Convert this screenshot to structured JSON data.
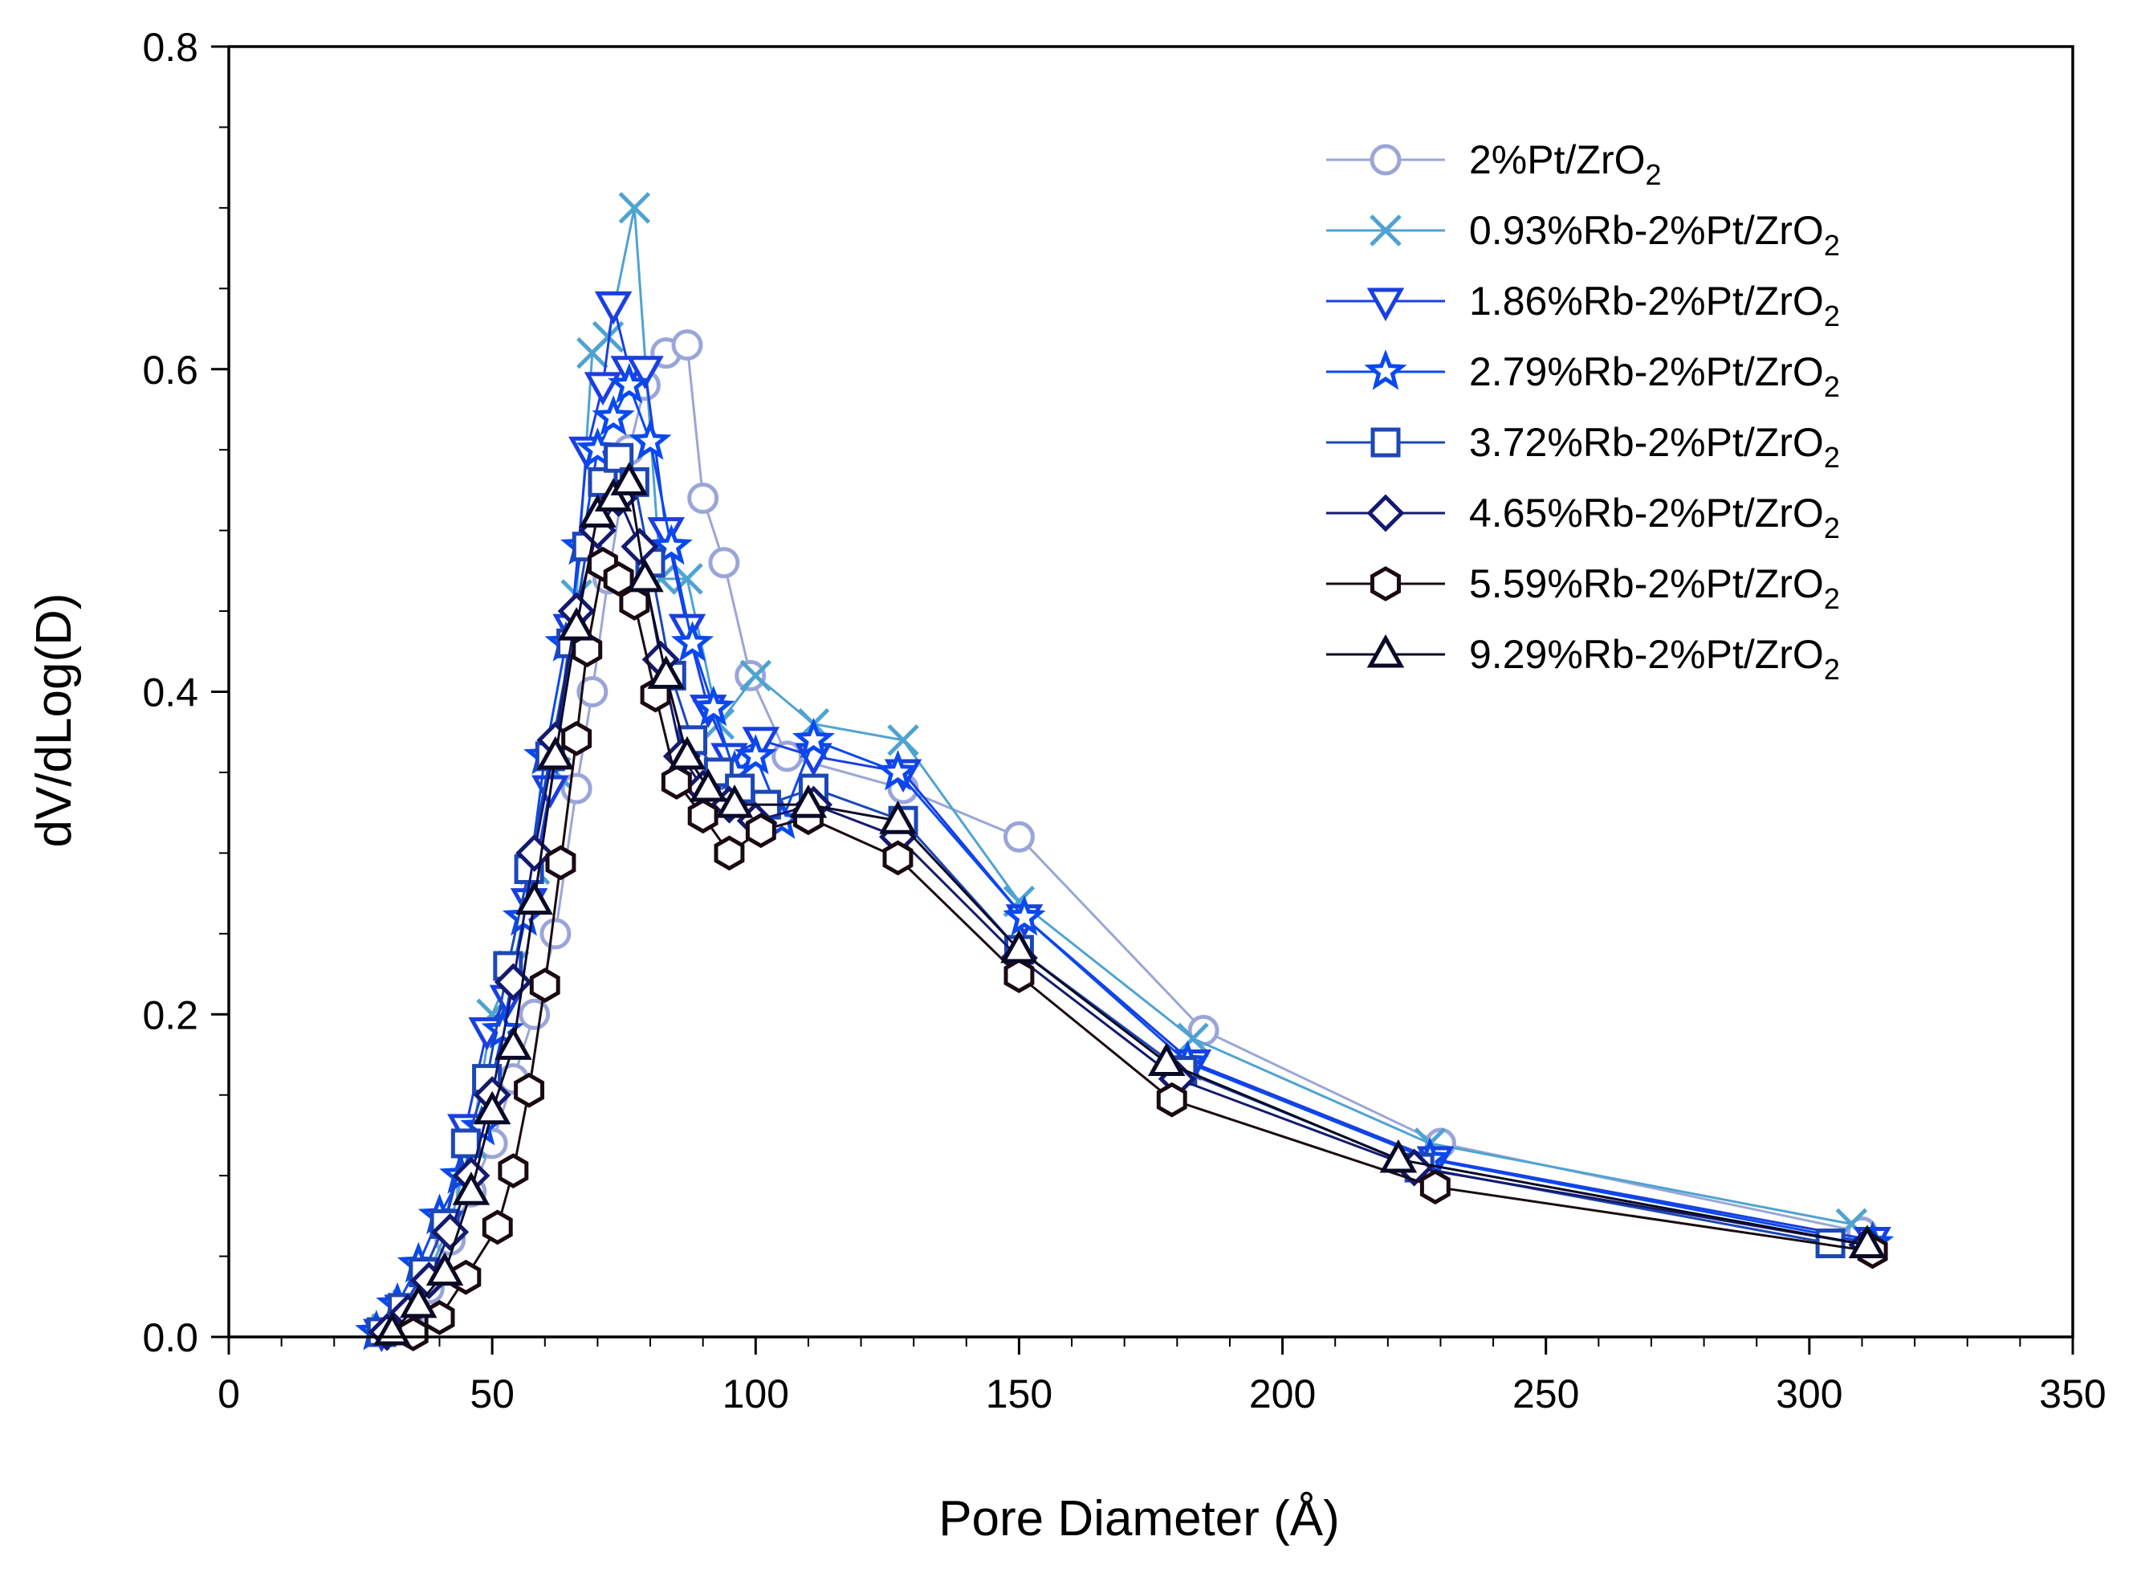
{
  "chart_data": {
    "type": "line",
    "title": "",
    "xlabel": "Pore Diameter (Å)",
    "ylabel": "dV/dLog(D)",
    "xlim": [
      0,
      350
    ],
    "ylim": [
      0,
      0.8
    ],
    "x_ticks": [
      "0",
      "50",
      "100",
      "150",
      "200",
      "250",
      "300",
      "350"
    ],
    "y_ticks": [
      "0.0",
      "0.2",
      "0.4",
      "0.6",
      "0.8"
    ],
    "legend_position": "top-right",
    "series": [
      {
        "name": "2%Pt/ZrO",
        "subscript": "2",
        "marker": "circle",
        "color": "#9aa6d8",
        "x": [
          34,
          38,
          42,
          46,
          50,
          54,
          58,
          62,
          66,
          69,
          72,
          76,
          79,
          83,
          87,
          90,
          94,
          99,
          106,
          128,
          150,
          185,
          230,
          310
        ],
        "y": [
          0.01,
          0.03,
          0.06,
          0.09,
          0.12,
          0.16,
          0.2,
          0.25,
          0.34,
          0.4,
          0.47,
          0.55,
          0.59,
          0.61,
          0.615,
          0.52,
          0.48,
          0.41,
          0.36,
          0.34,
          0.31,
          0.19,
          0.12,
          0.065
        ]
      },
      {
        "name": "0.93%Rb-2%Pt/ZrO",
        "subscript": "2",
        "marker": "x",
        "color": "#4fa3d1",
        "x": [
          30,
          34,
          38,
          42,
          46,
          50,
          54,
          58,
          62,
          66,
          69,
          72,
          77,
          82,
          87,
          93,
          100,
          111,
          128,
          150,
          183,
          228,
          308
        ],
        "y": [
          0.005,
          0.02,
          0.04,
          0.07,
          0.12,
          0.2,
          0.23,
          0.29,
          0.35,
          0.46,
          0.61,
          0.62,
          0.7,
          0.47,
          0.47,
          0.38,
          0.41,
          0.38,
          0.37,
          0.27,
          0.185,
          0.12,
          0.07
        ]
      },
      {
        "name": "1.86%Rb-2%Pt/ZrO",
        "subscript": "2",
        "marker": "triangle-down",
        "color": "#1a3fe0",
        "x": [
          29,
          33,
          37,
          41,
          45,
          49,
          53,
          57,
          61,
          65,
          68,
          71,
          73,
          76,
          79,
          83,
          87,
          91,
          95,
          101,
          111,
          128,
          151,
          183,
          229,
          312
        ],
        "y": [
          0.003,
          0.018,
          0.04,
          0.07,
          0.13,
          0.19,
          0.21,
          0.27,
          0.34,
          0.44,
          0.55,
          0.59,
          0.64,
          0.6,
          0.6,
          0.5,
          0.44,
          0.39,
          0.36,
          0.37,
          0.36,
          0.35,
          0.26,
          0.17,
          0.11,
          0.06
        ]
      },
      {
        "name": "2.79%Rb-2%Pt/ZrO",
        "subscript": "2",
        "marker": "star",
        "color": "#0a49f0",
        "x": [
          28,
          32,
          36,
          40,
          44,
          48,
          52,
          56,
          60,
          64,
          67,
          70,
          73,
          76,
          80,
          84,
          88,
          92,
          96,
          100,
          105,
          111,
          127,
          151,
          182,
          228,
          312
        ],
        "y": [
          0.003,
          0.02,
          0.045,
          0.075,
          0.1,
          0.13,
          0.19,
          0.26,
          0.36,
          0.43,
          0.49,
          0.55,
          0.57,
          0.59,
          0.555,
          0.49,
          0.43,
          0.39,
          0.35,
          0.36,
          0.32,
          0.37,
          0.35,
          0.26,
          0.17,
          0.11,
          0.058
        ]
      },
      {
        "name": "3.72%Rb-2%Pt/ZrO",
        "subscript": "2",
        "marker": "square",
        "color": "#1d47b6",
        "x": [
          29,
          33,
          37,
          41,
          45,
          49,
          53,
          57,
          61,
          65,
          68,
          71,
          74,
          77,
          80,
          84,
          88,
          93,
          97,
          102,
          111,
          128,
          150,
          181,
          226,
          304
        ],
        "y": [
          0.003,
          0.018,
          0.04,
          0.07,
          0.12,
          0.16,
          0.23,
          0.29,
          0.36,
          0.43,
          0.49,
          0.53,
          0.545,
          0.53,
          0.48,
          0.41,
          0.37,
          0.35,
          0.34,
          0.33,
          0.34,
          0.32,
          0.24,
          0.165,
          0.105,
          0.058
        ]
      },
      {
        "name": "4.65%Rb-2%Pt/ZrO",
        "subscript": "2",
        "marker": "diamond",
        "color": "#141a6e",
        "x": [
          30,
          34,
          38,
          42,
          46,
          50,
          54,
          58,
          62,
          66,
          70,
          74,
          78,
          82,
          86,
          90,
          95,
          100,
          111,
          127,
          150,
          180,
          225,
          311
        ],
        "y": [
          0.003,
          0.015,
          0.035,
          0.065,
          0.1,
          0.15,
          0.22,
          0.3,
          0.37,
          0.45,
          0.5,
          0.52,
          0.49,
          0.42,
          0.36,
          0.34,
          0.33,
          0.32,
          0.33,
          0.31,
          0.235,
          0.16,
          0.105,
          0.057
        ]
      },
      {
        "name": "5.59%Rb-2%Pt/ZrO",
        "subscript": "2",
        "marker": "hexagon",
        "color": "#1a0a14",
        "x": [
          35,
          40,
          45,
          51,
          54,
          57,
          60,
          63,
          66,
          68,
          71,
          74,
          77,
          81,
          85,
          90,
          95,
          101,
          110,
          127,
          150,
          179,
          229,
          312
        ],
        "y": [
          0.002,
          0.012,
          0.037,
          0.068,
          0.103,
          0.153,
          0.218,
          0.294,
          0.371,
          0.426,
          0.479,
          0.47,
          0.455,
          0.398,
          0.344,
          0.323,
          0.3,
          0.314,
          0.322,
          0.297,
          0.224,
          0.147,
          0.093,
          0.053
        ]
      },
      {
        "name": "9.29%Rb-2%Pt/ZrO",
        "subscript": "2",
        "marker": "triangle-up",
        "color": "#0a0a26",
        "x": [
          31,
          36,
          41,
          46,
          50,
          54,
          58,
          62,
          66,
          70,
          73,
          76,
          79,
          83,
          87,
          91,
          96,
          110,
          127,
          150,
          178,
          222,
          311
        ],
        "y": [
          0.003,
          0.02,
          0.04,
          0.09,
          0.14,
          0.18,
          0.27,
          0.36,
          0.44,
          0.51,
          0.52,
          0.53,
          0.47,
          0.41,
          0.36,
          0.34,
          0.33,
          0.33,
          0.32,
          0.24,
          0.17,
          0.11,
          0.057
        ]
      }
    ]
  }
}
